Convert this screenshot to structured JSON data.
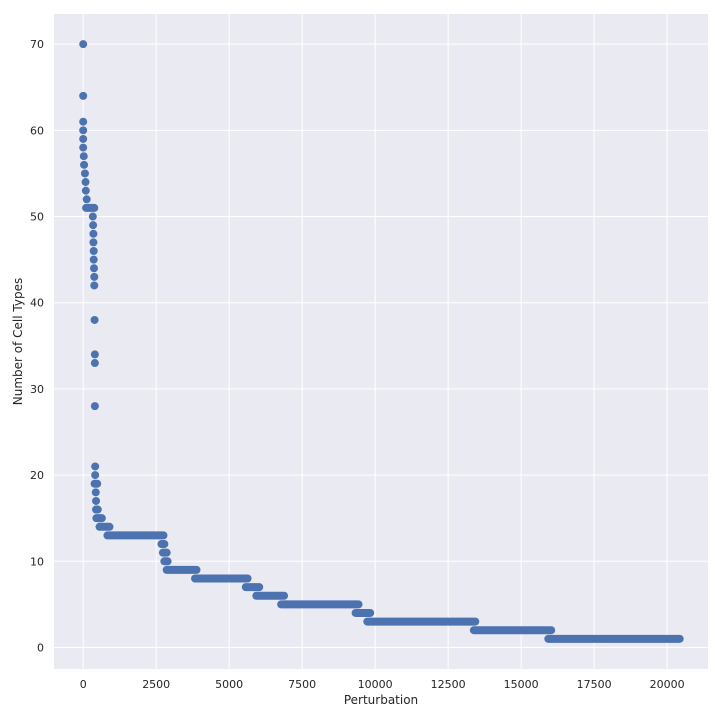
{
  "chart_data": {
    "type": "scatter",
    "title": "",
    "xlabel": "Perturbation",
    "ylabel": "Number of Cell Types",
    "xlim": [
      -1000,
      21400
    ],
    "ylim": [
      -2.5,
      73.5
    ],
    "grid": true,
    "xticks": [
      0,
      2500,
      5000,
      7500,
      10000,
      12500,
      15000,
      17500,
      20000
    ],
    "xtick_labels": [
      "0",
      "2500",
      "5000",
      "7500",
      "10000",
      "12500",
      "15000",
      "17500",
      "20000"
    ],
    "yticks": [
      0,
      10,
      20,
      30,
      40,
      50,
      60,
      70
    ],
    "ytick_labels": [
      "0",
      "10",
      "20",
      "30",
      "40",
      "50",
      "60",
      "70"
    ],
    "background_color": "#eaeaf2",
    "marker_color": "#4c72b0",
    "points": [
      {
        "x": 0,
        "y": 70
      },
      {
        "x": 0,
        "y": 64
      },
      {
        "x": 0,
        "y": 61
      },
      {
        "x": 0,
        "y": 60
      },
      {
        "x": 0,
        "y": 59
      },
      {
        "x": 0,
        "y": 58
      },
      {
        "x": 20,
        "y": 57
      },
      {
        "x": 30,
        "y": 56
      },
      {
        "x": 60,
        "y": 55
      },
      {
        "x": 80,
        "y": 54
      },
      {
        "x": 90,
        "y": 53
      },
      {
        "x": 120,
        "y": 52
      },
      {
        "x": 330,
        "y": 50
      },
      {
        "x": 340,
        "y": 49
      },
      {
        "x": 350,
        "y": 48
      },
      {
        "x": 350,
        "y": 47
      },
      {
        "x": 360,
        "y": 46
      },
      {
        "x": 360,
        "y": 45
      },
      {
        "x": 370,
        "y": 44
      },
      {
        "x": 380,
        "y": 43
      },
      {
        "x": 380,
        "y": 42
      },
      {
        "x": 390,
        "y": 38
      },
      {
        "x": 400,
        "y": 34
      },
      {
        "x": 400,
        "y": 33
      },
      {
        "x": 400,
        "y": 28
      },
      {
        "x": 410,
        "y": 21
      },
      {
        "x": 410,
        "y": 20
      },
      {
        "x": 430,
        "y": 18
      },
      {
        "x": 440,
        "y": 17
      }
    ],
    "runs": [
      {
        "y": 51,
        "x_start": 100,
        "x_end": 380
      },
      {
        "y": 19,
        "x_start": 390,
        "x_end": 480
      },
      {
        "y": 16,
        "x_start": 440,
        "x_end": 500
      },
      {
        "y": 15,
        "x_start": 450,
        "x_end": 640
      },
      {
        "y": 14,
        "x_start": 560,
        "x_end": 900
      },
      {
        "y": 13,
        "x_start": 830,
        "x_end": 2750
      },
      {
        "y": 12,
        "x_start": 2680,
        "x_end": 2780
      },
      {
        "y": 11,
        "x_start": 2730,
        "x_end": 2860
      },
      {
        "y": 10,
        "x_start": 2780,
        "x_end": 2890
      },
      {
        "y": 9,
        "x_start": 2860,
        "x_end": 3880
      },
      {
        "y": 8,
        "x_start": 3830,
        "x_end": 5630
      },
      {
        "y": 7,
        "x_start": 5570,
        "x_end": 6030
      },
      {
        "y": 6,
        "x_start": 5930,
        "x_end": 6880
      },
      {
        "y": 5,
        "x_start": 6780,
        "x_end": 9430
      },
      {
        "y": 4,
        "x_start": 9330,
        "x_end": 9830
      },
      {
        "y": 3,
        "x_start": 9730,
        "x_end": 13430
      },
      {
        "y": 2,
        "x_start": 13380,
        "x_end": 16030
      },
      {
        "y": 1,
        "x_start": 15930,
        "x_end": 20430
      }
    ]
  }
}
